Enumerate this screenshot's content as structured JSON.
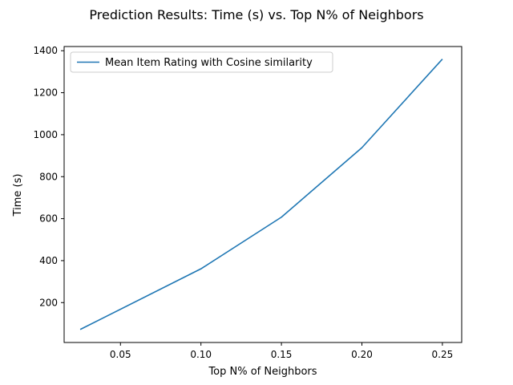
{
  "chart_data": {
    "type": "line",
    "title": "Prediction Results: Time (s) vs. Top N% of Neighbors",
    "xlabel": "Top N% of Neighbors",
    "ylabel": "Time (s)",
    "xlim": [
      0.015,
      0.262
    ],
    "ylim": [
      10,
      1420
    ],
    "xticks": [
      0.05,
      0.1,
      0.15,
      0.2,
      0.25
    ],
    "xtick_labels": [
      "0.05",
      "0.10",
      "0.15",
      "0.20",
      "0.25"
    ],
    "yticks": [
      200,
      400,
      600,
      800,
      1000,
      1200,
      1400
    ],
    "ytick_labels": [
      "200",
      "400",
      "600",
      "800",
      "1000",
      "1200",
      "1400"
    ],
    "grid": false,
    "legend_position": "top-left",
    "series": [
      {
        "name": "Mean Item Rating with Cosine similarity",
        "color": "#1f77b4",
        "x": [
          0.025,
          0.1,
          0.15,
          0.2,
          0.25
        ],
        "y": [
          72,
          361,
          607,
          938,
          1360
        ]
      }
    ]
  }
}
